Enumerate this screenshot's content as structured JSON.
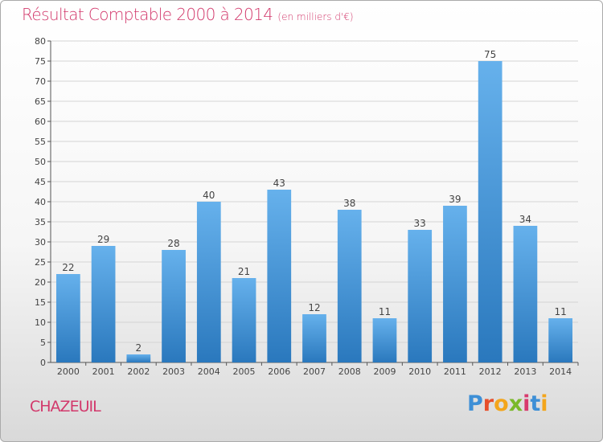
{
  "header": {
    "title": "Résultat Comptable 2000 à 2014",
    "subtitle": "(en milliers d'€)"
  },
  "footer": {
    "commune": "CHAZEUIL",
    "logo_text": "Proxiti",
    "logo_letters": [
      {
        "char": "P",
        "color": "#3d8fd6"
      },
      {
        "char": "r",
        "color": "#e74f2b"
      },
      {
        "char": "o",
        "color": "#f3a51b"
      },
      {
        "char": "x",
        "color": "#7ab929"
      },
      {
        "char": "i",
        "color": "#d83a6d"
      },
      {
        "char": "t",
        "color": "#3d8fd6"
      },
      {
        "char": "i",
        "color": "#f3a51b"
      }
    ]
  },
  "colors": {
    "title": "#d2386b",
    "bar_light": "#66b1ec",
    "bar_dark": "#2a78bd",
    "grid": "#d4d4d4",
    "axis": "#555555"
  },
  "chart_data": {
    "type": "bar",
    "title": "Résultat Comptable 2000 à 2014",
    "subtitle": "(en milliers d'€)",
    "categories": [
      "2000",
      "2001",
      "2002",
      "2003",
      "2004",
      "2005",
      "2006",
      "2007",
      "2008",
      "2009",
      "2010",
      "2011",
      "2012",
      "2013",
      "2014"
    ],
    "values": [
      22,
      29,
      2,
      28,
      40,
      21,
      43,
      12,
      38,
      11,
      33,
      39,
      75,
      34,
      11
    ],
    "data_labels": [
      "22",
      "29",
      "2",
      "28",
      "40",
      "21",
      "43",
      "12",
      "38",
      "11",
      "33",
      "39",
      "75",
      "34",
      "11"
    ],
    "ylim": [
      0,
      80
    ],
    "yticks": [
      0,
      5,
      10,
      15,
      20,
      25,
      30,
      35,
      40,
      45,
      50,
      55,
      60,
      65,
      70,
      75,
      80
    ],
    "xlabel": "",
    "ylabel": "",
    "grid": true,
    "legend": "none"
  }
}
